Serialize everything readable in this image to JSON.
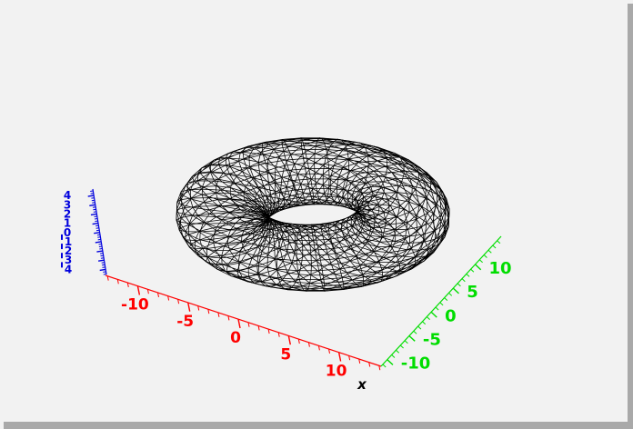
{
  "window": {
    "background_color": "#f2f2f2",
    "shadow_color": "#a9a9a9"
  },
  "chart_data": {
    "type": "surface",
    "title": "",
    "description": "3D wireframe (mesh) plot of a torus on an oblique axonometric axis box",
    "surface": {
      "shape": "torus",
      "major_radius": 8.2,
      "minor_radius": 4.1,
      "mesh_segments_u": 40,
      "mesh_segments_v": 20,
      "triangulated": true,
      "equations": [
        "x = (R + r·cos v)·cos u",
        "y = (R + r·cos v)·sin u",
        "z = r·sin v"
      ],
      "wireframe_color": "#000000"
    },
    "x_axis": {
      "label": "x",
      "label_color": "#000000",
      "color": "#ff0000",
      "range": [
        -13.2,
        14.2
      ],
      "minor_tick_step": 1,
      "major_ticks": [
        -10,
        -5,
        0,
        5,
        10
      ],
      "tick_labels": [
        "-10",
        "-5",
        "0",
        "5",
        "10"
      ]
    },
    "y_axis": {
      "label": "",
      "label_color": "#000000",
      "color": "#00dd00",
      "range": [
        -11.4,
        15.9
      ],
      "minor_tick_step": 1,
      "major_ticks": [
        -10,
        -5,
        0,
        5,
        10
      ],
      "tick_labels": [
        "-10",
        "-5",
        "0",
        "5",
        "10"
      ]
    },
    "z_axis": {
      "label": "",
      "label_color": "#000000",
      "color": "#0000dd",
      "range": [
        -4.55,
        4.7
      ],
      "minor_tick_step": 0.25,
      "major_ticks": [
        4,
        3,
        2,
        1,
        0,
        -1,
        -2,
        -3,
        -4
      ],
      "tick_labels": [
        "4",
        "3",
        "2",
        "1",
        "0",
        "-1",
        "-2",
        "-3",
        "-4"
      ]
    },
    "grid": false,
    "legend": null,
    "view": "oblique 3D projection: x axis front-bottom (red), y axis right ascending (green), z axis left vertical (blue)"
  }
}
